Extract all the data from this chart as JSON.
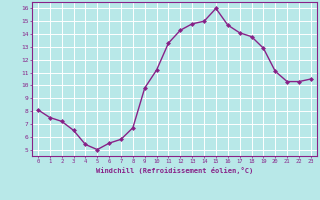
{
  "x": [
    0,
    1,
    2,
    3,
    4,
    5,
    6,
    7,
    8,
    9,
    10,
    11,
    12,
    13,
    14,
    15,
    16,
    17,
    18,
    19,
    20,
    21,
    22,
    23
  ],
  "y": [
    8.1,
    7.5,
    7.2,
    6.5,
    5.4,
    5.0,
    5.5,
    5.8,
    6.7,
    9.8,
    11.2,
    13.3,
    14.3,
    14.8,
    15.0,
    16.0,
    14.7,
    14.1,
    13.8,
    12.9,
    11.1,
    10.3,
    10.3,
    10.5
  ],
  "line_color": "#882288",
  "marker": "D",
  "marker_size": 2.0,
  "bg_color": "#b8e8e8",
  "grid_color": "#ffffff",
  "xlabel": "Windchill (Refroidissement éolien,°C)",
  "xlabel_color": "#882288",
  "tick_color": "#882288",
  "ylim": [
    4.5,
    16.5
  ],
  "xlim": [
    -0.5,
    23.5
  ],
  "yticks": [
    5,
    6,
    7,
    8,
    9,
    10,
    11,
    12,
    13,
    14,
    15,
    16
  ],
  "xticks": [
    0,
    1,
    2,
    3,
    4,
    5,
    6,
    7,
    8,
    9,
    10,
    11,
    12,
    13,
    14,
    15,
    16,
    17,
    18,
    19,
    20,
    21,
    22,
    23
  ],
  "line_width": 1.0
}
